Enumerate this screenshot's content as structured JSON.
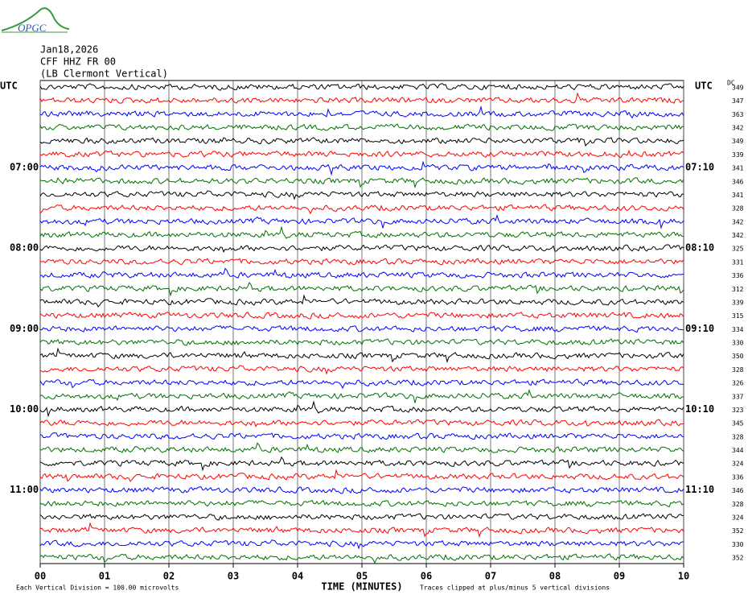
{
  "header": {
    "logo": "OPGC",
    "date": "Jan18,2026",
    "station": "CFF HHZ FR 00",
    "location": "(LB  Clermont Vertical)"
  },
  "chart_data": {
    "type": "helicorder",
    "x_label": "TIME (MINUTES)",
    "left_axis_label": "UTC",
    "right_axis_label": "UTC",
    "dc_label": "DC",
    "xlim": [
      0,
      10
    ],
    "xticks": [
      {
        "value": 0,
        "label": "00"
      },
      {
        "value": 1,
        "label": "01"
      },
      {
        "value": 2,
        "label": "02"
      },
      {
        "value": 3,
        "label": "03"
      },
      {
        "value": 4,
        "label": "04"
      },
      {
        "value": 5,
        "label": "05"
      },
      {
        "value": 6,
        "label": "06"
      },
      {
        "value": 7,
        "label": "07"
      },
      {
        "value": 8,
        "label": "08"
      },
      {
        "value": 9,
        "label": "09"
      },
      {
        "value": 10,
        "label": "10"
      }
    ],
    "grid": true,
    "colors": [
      "#000000",
      "#ff0000",
      "#0000ff",
      "#007000"
    ],
    "left_labels": [
      null,
      null,
      null,
      null,
      null,
      null,
      "07:00",
      null,
      null,
      null,
      null,
      null,
      "08:00",
      null,
      null,
      null,
      null,
      null,
      "09:00",
      null,
      null,
      null,
      null,
      null,
      "10:00",
      null,
      null,
      null,
      null,
      null,
      "11:00",
      null,
      null,
      null,
      null,
      null
    ],
    "right_labels": [
      null,
      null,
      null,
      null,
      null,
      null,
      "07:10",
      null,
      null,
      null,
      null,
      null,
      "08:10",
      null,
      null,
      null,
      null,
      null,
      "09:10",
      null,
      null,
      null,
      null,
      null,
      "10:10",
      null,
      null,
      null,
      null,
      null,
      "11:10",
      null,
      null,
      null,
      null,
      null
    ],
    "dc_values": [
      349,
      347,
      363,
      342,
      349,
      339,
      341,
      346,
      341,
      328,
      342,
      342,
      325,
      331,
      336,
      312,
      339,
      315,
      334,
      330,
      350,
      328,
      326,
      337,
      323,
      345,
      328,
      344,
      324,
      336,
      346,
      328,
      324,
      352,
      330,
      352
    ],
    "footer_left": "Each Vertical Division =  100.00 microvolts",
    "footer_right": "Traces clipped at plus/minus 5 vertical divisions"
  }
}
